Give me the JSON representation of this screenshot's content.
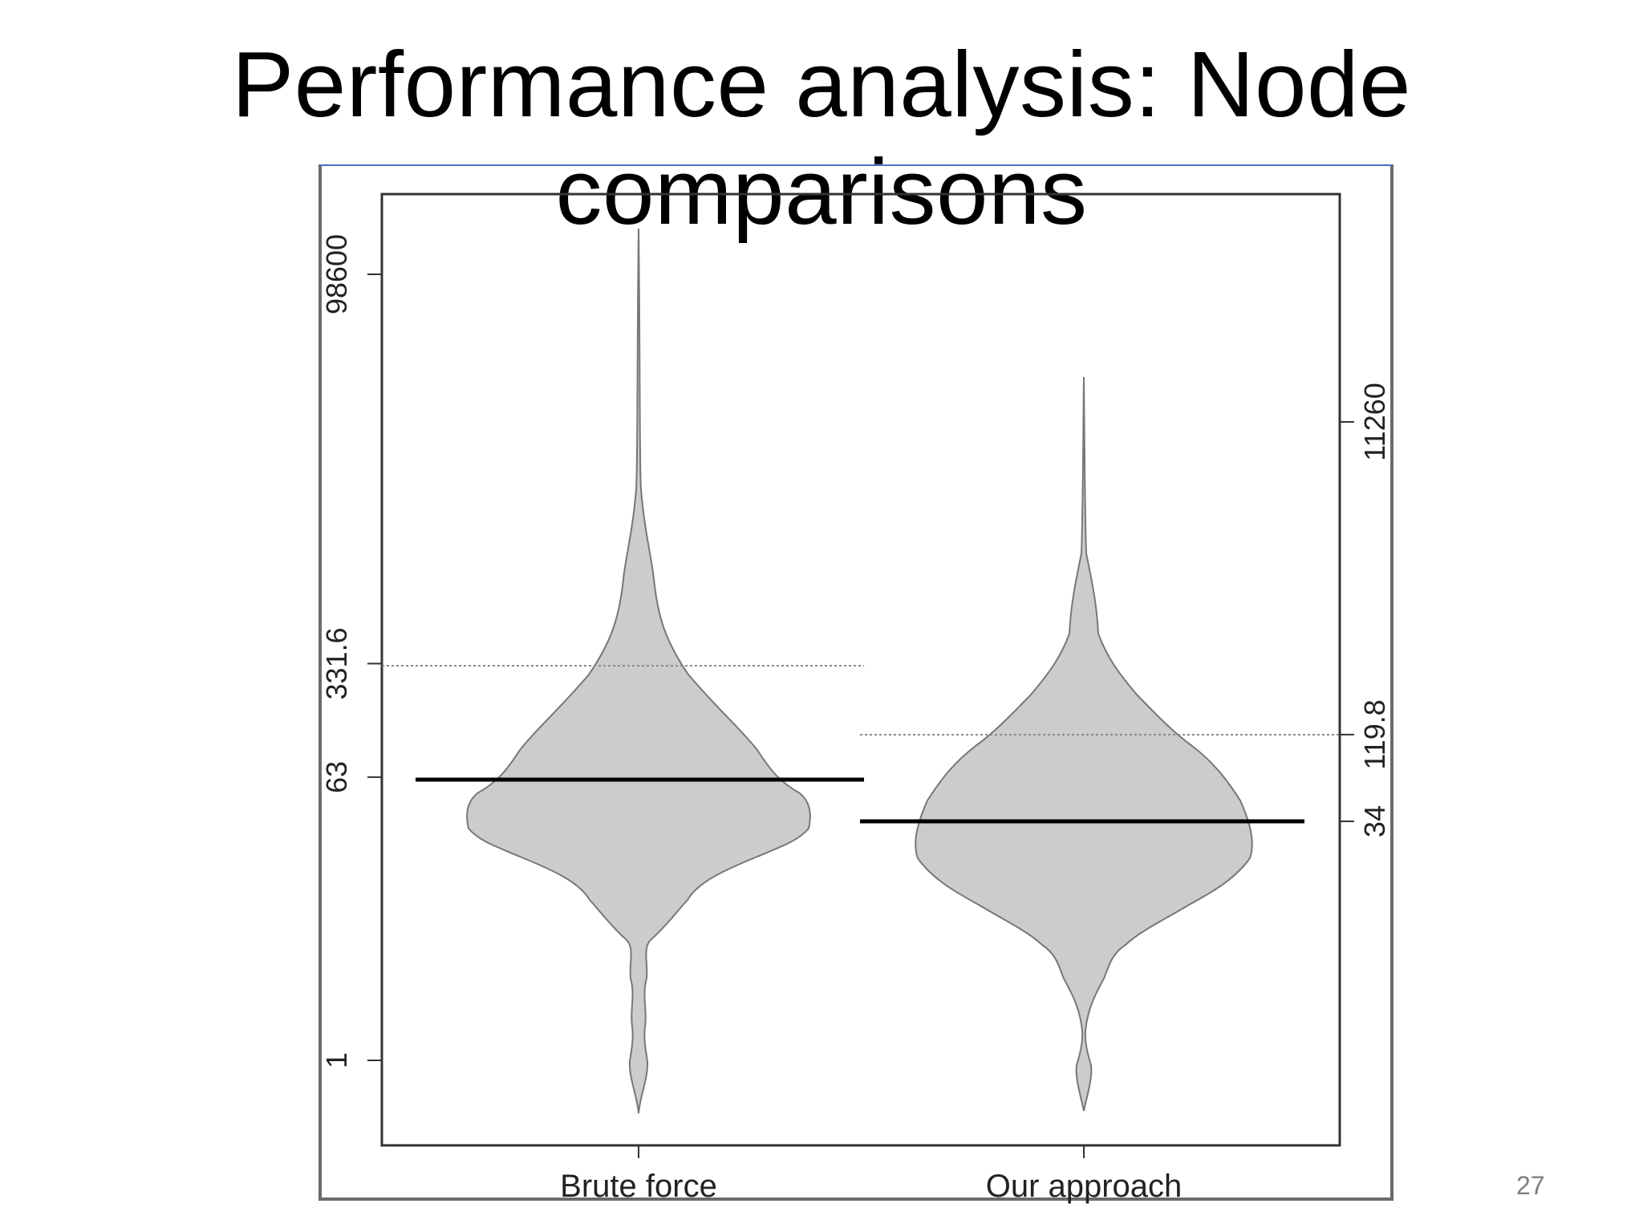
{
  "slide": {
    "title": "Performance analysis: Node comparisons",
    "page_number": "27"
  },
  "chart_data": {
    "type": "violin",
    "categories": [
      "Brute force",
      "Our approach"
    ],
    "left_axis": {
      "ticks": [
        "1",
        "63",
        "331.6",
        "98600"
      ],
      "scale": "log"
    },
    "right_axis": {
      "ticks": [
        "34",
        "119.8",
        "11260"
      ],
      "scale": "log"
    },
    "series": [
      {
        "category": "Brute force",
        "median": 63,
        "mean": 331.6,
        "max_tick": 98600,
        "min_tick": 1,
        "axis": "left"
      },
      {
        "category": "Our approach",
        "median": 34,
        "mean": 119.8,
        "max_tick": 11260,
        "min_tick": 1,
        "axis": "right"
      }
    ],
    "colors": {
      "violin_fill": "#cccccc",
      "violin_stroke": "#777777",
      "median_line": "#000000",
      "mean_line": "#8a8a8a"
    },
    "grid": false
  }
}
